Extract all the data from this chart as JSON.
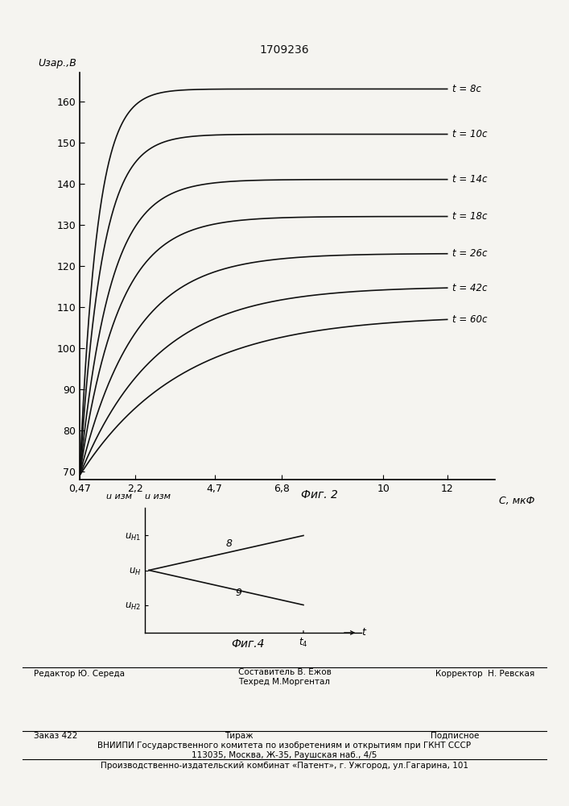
{
  "title": "1709236",
  "fig1_ylabel": "Uзар.,В",
  "fig1_xlabel": "C, мкФ",
  "fig1_yticks": [
    70,
    80,
    90,
    100,
    110,
    120,
    130,
    140,
    150,
    160
  ],
  "fig1_xtick_vals": [
    0.47,
    2.2,
    4.7,
    6.8,
    10,
    12
  ],
  "fig1_xtick_labels": [
    "0,47",
    "2,2",
    "4,7",
    "6,8",
    "10",
    "12"
  ],
  "fig1_xlim": [
    0.47,
    13.5
  ],
  "fig1_ylim": [
    68,
    167
  ],
  "curves": [
    {
      "U0": 163,
      "tau": 0.55,
      "label": "t = 8c"
    },
    {
      "U0": 152,
      "tau": 0.7,
      "label": "t = 10c"
    },
    {
      "U0": 141,
      "tau": 0.95,
      "label": "t = 14c"
    },
    {
      "U0": 132,
      "tau": 1.2,
      "label": "t = 18c"
    },
    {
      "U0": 123,
      "tau": 1.7,
      "label": "t = 26c"
    },
    {
      "U0": 115,
      "tau": 2.4,
      "label": "t = 42c"
    },
    {
      "U0": 108,
      "tau": 3.2,
      "label": "t = 60c"
    }
  ],
  "fig2_title": "Фиг. 2",
  "fig4_title": "Фиг.4",
  "footer_editor": "Редактор Ю. Середа",
  "footer_author1": "Составитель В. Ежов",
  "footer_author2": "Техред М.Моргентал",
  "footer_corrector": "Корректор  Н. Ревская",
  "footer_order": "Заказ 422",
  "footer_tirazh": "Тираж",
  "footer_podp": "Подписное",
  "footer_vniip": "ВНИИПИ Государственного комитета по изобретениям и открытиям при ГКНТ СССР",
  "footer_addr": "113035, Москва, Ж-35, Раушская наб., 4/5",
  "footer_patent": "Производственно-издательский комбинат «Патент», г. Ужгород, ул.Гагарина, 101",
  "bg_color": "#f5f4f0",
  "line_color": "#111111"
}
